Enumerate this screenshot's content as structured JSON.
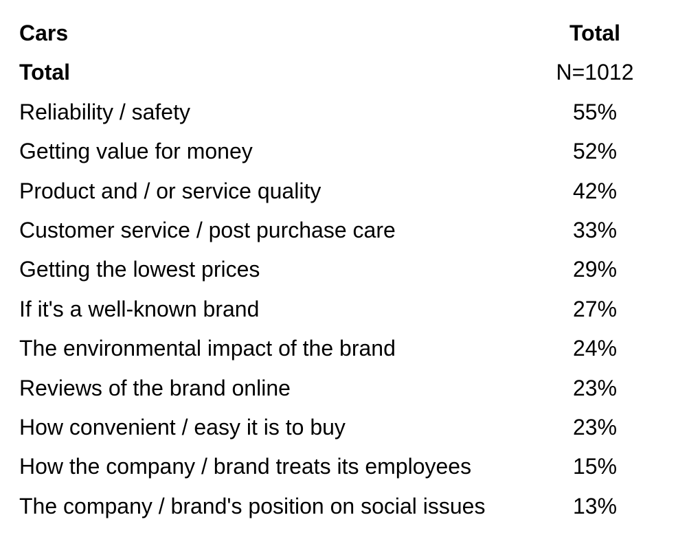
{
  "chart_data": {
    "type": "table",
    "columns": [
      "Cars",
      "Total"
    ],
    "base_row": {
      "label": "Total",
      "value": "N=1012"
    },
    "rows": [
      {
        "label": "Reliability / safety",
        "value": "55%"
      },
      {
        "label": "Getting value for money",
        "value": "52%"
      },
      {
        "label": "Product and / or service quality",
        "value": "42%"
      },
      {
        "label": "Customer service / post purchase care",
        "value": "33%"
      },
      {
        "label": "Getting the lowest prices",
        "value": "29%"
      },
      {
        "label": "If it's a well-known brand",
        "value": "27%"
      },
      {
        "label": "The environmental impact of the brand",
        "value": "24%"
      },
      {
        "label": "Reviews of the brand online",
        "value": "23%"
      },
      {
        "label": "How convenient / easy it is to buy",
        "value": "23%"
      },
      {
        "label": "How the company / brand treats its employees",
        "value": "15%"
      },
      {
        "label": "The company / brand's position on social issues",
        "value": "13%"
      }
    ]
  }
}
